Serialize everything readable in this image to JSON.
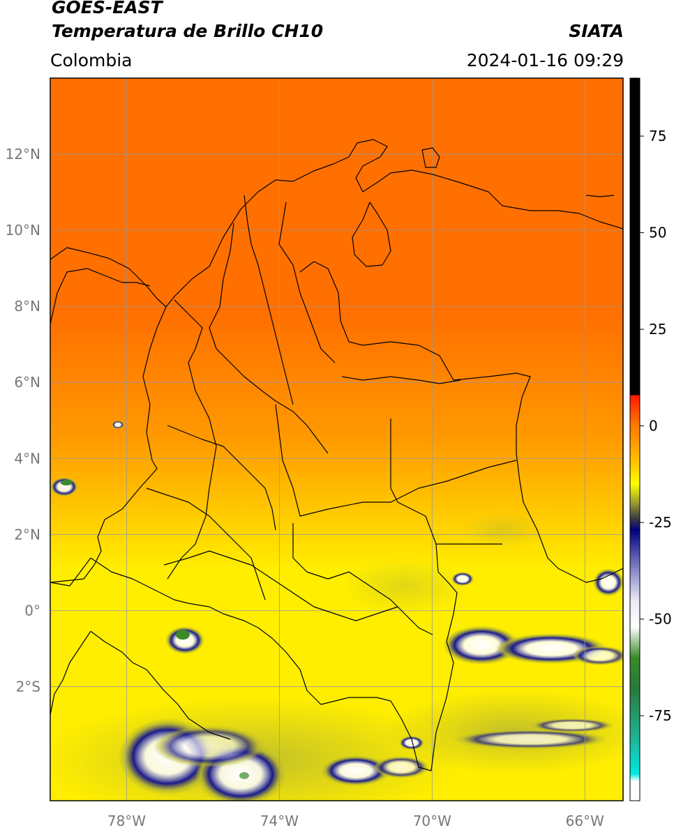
{
  "header": {
    "title_line1": "GOES-EAST",
    "title_line2": "Temperatura de Brillo CH10",
    "region": "Colombia",
    "organization": "SIATA",
    "timestamp": "2024-01-16 09:29"
  },
  "map": {
    "lon_range": [
      -80,
      -65
    ],
    "lat_range": [
      -5,
      14
    ],
    "lat_ticks": [
      {
        "value": 12,
        "label": "12°N"
      },
      {
        "value": 10,
        "label": "10°N"
      },
      {
        "value": 8,
        "label": "8°N"
      },
      {
        "value": 6,
        "label": "6°N"
      },
      {
        "value": 4,
        "label": "4°N"
      },
      {
        "value": 2,
        "label": "2°N"
      },
      {
        "value": 0,
        "label": "0°"
      },
      {
        "value": -2,
        "label": "2°S"
      }
    ],
    "lon_ticks": [
      {
        "value": -78,
        "label": "78°W"
      },
      {
        "value": -74,
        "label": "74°W"
      },
      {
        "value": -70,
        "label": "70°W"
      },
      {
        "value": -66,
        "label": "66°W"
      }
    ],
    "grid": true
  },
  "colorbar": {
    "range": [
      -97,
      90
    ],
    "ticks": [
      {
        "value": 75,
        "label": "75"
      },
      {
        "value": 50,
        "label": "50"
      },
      {
        "value": 25,
        "label": "25"
      },
      {
        "value": 0,
        "label": "0"
      },
      {
        "value": -25,
        "label": "-25"
      },
      {
        "value": -50,
        "label": "-50"
      },
      {
        "value": -75,
        "label": "-75"
      }
    ],
    "stops": [
      {
        "value": 90,
        "color": "#000000"
      },
      {
        "value": 8,
        "color": "#000000"
      },
      {
        "value": 7.9,
        "color": "#ff1a00"
      },
      {
        "value": 0,
        "color": "#ff7a00"
      },
      {
        "value": -10,
        "color": "#ffc800"
      },
      {
        "value": -15,
        "color": "#ffff00"
      },
      {
        "value": -20,
        "color": "#9a9a30"
      },
      {
        "value": -24,
        "color": "#3a3a40"
      },
      {
        "value": -27,
        "color": "#000080"
      },
      {
        "value": -35,
        "color": "#6a6ab8"
      },
      {
        "value": -45,
        "color": "#e8e8f4"
      },
      {
        "value": -52,
        "color": "#ffffff"
      },
      {
        "value": -60,
        "color": "#3a8a2a"
      },
      {
        "value": -68,
        "color": "#2a7a3a"
      },
      {
        "value": -80,
        "color": "#20b090"
      },
      {
        "value": -90,
        "color": "#00e8e0"
      },
      {
        "value": -92,
        "color": "#ffffff"
      },
      {
        "value": -97,
        "color": "#ffffff"
      }
    ]
  },
  "palette": {
    "warm_north": "#ff7000",
    "orange_mid": "#ff9a00",
    "yellow_south": "#ffee00",
    "olive_cloud": "#b8b830",
    "deep_cloud": "#1a1a8a",
    "cloud_core": "#ffffff",
    "grid_line": "#999999",
    "border_line": "#000000"
  }
}
